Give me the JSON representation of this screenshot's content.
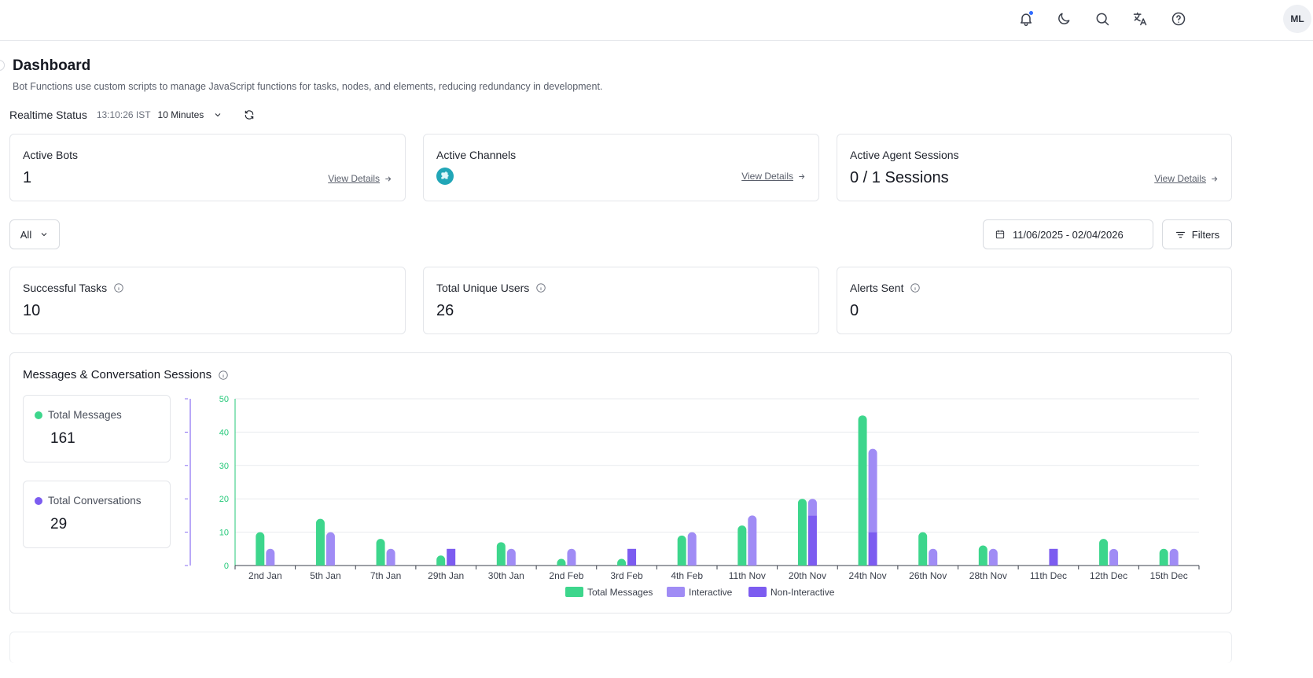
{
  "header": {
    "avatar_initials": "ML",
    "icons": [
      "bell-icon",
      "moon-icon",
      "search-icon",
      "translate-icon",
      "help-icon"
    ],
    "notification_dot_color": "#2f6bff"
  },
  "page": {
    "title": "Dashboard",
    "description": "Bot Functions use custom scripts to manage JavaScript functions for tasks, nodes, and elements, reducing redundancy in development."
  },
  "realtime": {
    "label": "Realtime Status",
    "time": "13:10:26 IST",
    "interval": "10 Minutes"
  },
  "summary_cards": {
    "active_bots": {
      "title": "Active Bots",
      "value": "1",
      "link": "View Details"
    },
    "active_channels": {
      "title": "Active Channels",
      "link": "View Details",
      "channel_icon": "puzzle-channel-icon"
    },
    "agent_sessions": {
      "title": "Active Agent Sessions",
      "value": "0 / 1 Sessions",
      "link": "View Details"
    }
  },
  "filters": {
    "scope": "All",
    "date_range": "11/06/2025 - 02/04/2026",
    "filters_label": "Filters"
  },
  "kpis": {
    "successful_tasks": {
      "title": "Successful Tasks",
      "value": "10"
    },
    "unique_users": {
      "title": "Total Unique Users",
      "value": "26"
    },
    "alerts_sent": {
      "title": "Alerts Sent",
      "value": "0"
    }
  },
  "messages_section": {
    "title": "Messages & Conversation Sessions",
    "total_messages": {
      "label": "Total Messages",
      "value": "161"
    },
    "total_conversations": {
      "label": "Total Conversations",
      "value": "29"
    }
  },
  "colors": {
    "total_messages": "#3dd68c",
    "interactive": "#a08cf5",
    "non_interactive": "#7c5cf0",
    "left_axis": "#26c97a",
    "right_axis": "#8a6ff2"
  },
  "chart_data": {
    "type": "bar",
    "categories": [
      "2nd Jan",
      "5th Jan",
      "7th Jan",
      "29th Jan",
      "30th Jan",
      "2nd Feb",
      "3rd Feb",
      "4th Feb",
      "11th Nov",
      "20th Nov",
      "24th Nov",
      "26th Nov",
      "28th Nov",
      "11th Dec",
      "12th Dec",
      "15th Dec"
    ],
    "ylim": [
      0,
      50
    ],
    "yticks": [
      0,
      10,
      20,
      30,
      40,
      50
    ],
    "series": [
      {
        "name": "Total Messages",
        "values": [
          10,
          14,
          8,
          3,
          7,
          2,
          2,
          9,
          12,
          20,
          45,
          10,
          6,
          0,
          8,
          5
        ]
      },
      {
        "name": "Interactive",
        "values": [
          5,
          10,
          5,
          0,
          5,
          5,
          0,
          10,
          15,
          5,
          25,
          5,
          5,
          0,
          5,
          5
        ]
      },
      {
        "name": "Non-Interactive",
        "values": [
          0,
          0,
          0,
          5,
          0,
          0,
          5,
          0,
          0,
          15,
          10,
          0,
          0,
          5,
          0,
          0
        ]
      }
    ],
    "stacked_series": [
      "Interactive",
      "Non-Interactive"
    ],
    "legend": [
      "Total Messages",
      "Interactive",
      "Non-Interactive"
    ],
    "legend_position": "bottom-center",
    "grid": true
  }
}
